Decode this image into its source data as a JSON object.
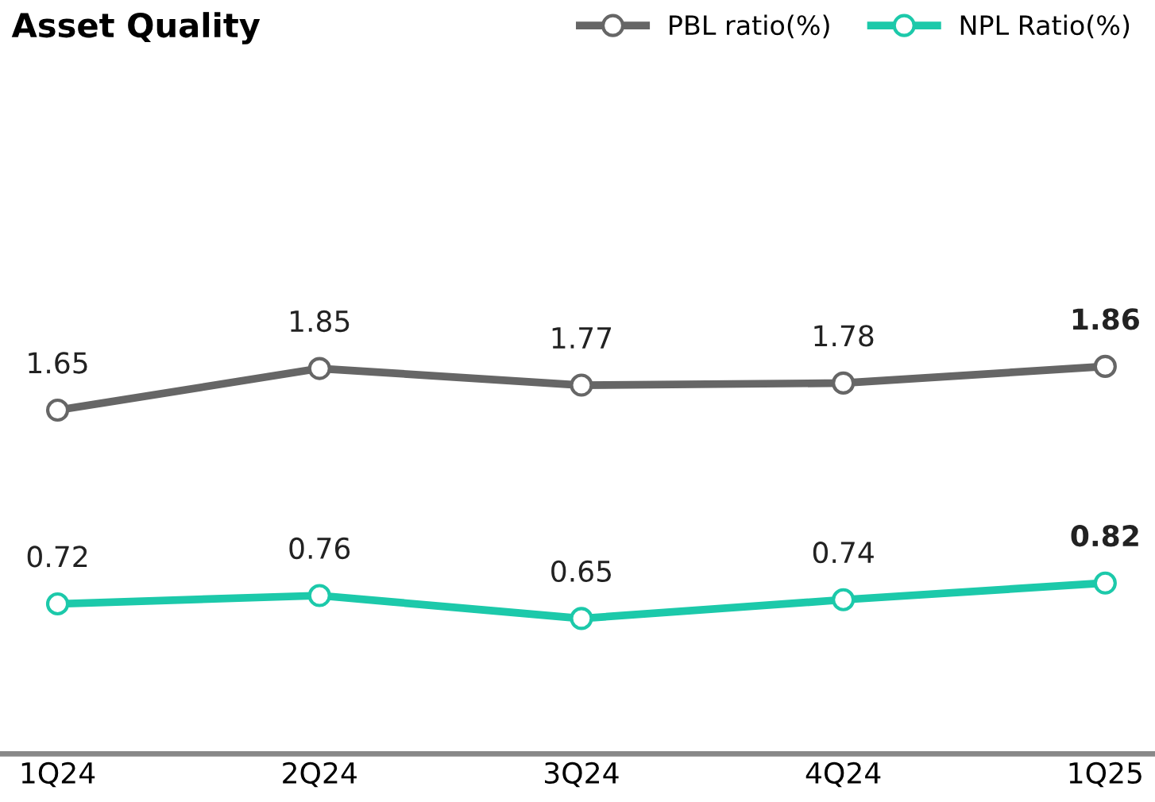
{
  "chart_data": {
    "type": "line",
    "title": "Asset Quality",
    "categories": [
      "1Q24",
      "2Q24",
      "3Q24",
      "4Q24",
      "1Q25"
    ],
    "series": [
      {
        "name": "PBL ratio(%)",
        "color": "#666666",
        "values": [
          1.65,
          1.85,
          1.77,
          1.78,
          1.86
        ]
      },
      {
        "name": "NPL Ratio(%)",
        "color": "#1cc9aa",
        "values": [
          0.72,
          0.76,
          0.65,
          0.74,
          0.82
        ]
      }
    ],
    "data_labels": true,
    "marker": "circle",
    "line_style": "solid",
    "legend": "top right",
    "grid": false,
    "tick_labels": "x"
  }
}
